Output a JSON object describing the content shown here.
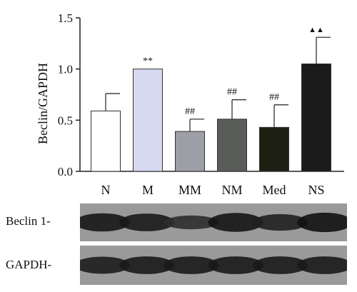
{
  "chart_data": {
    "type": "bar",
    "ylabel": "Beclin/GAPDH",
    "ylim": [
      0,
      1.5
    ],
    "yticks": [
      0.0,
      0.5,
      1.0,
      1.5
    ],
    "ytick_labels": [
      "0.0",
      "0.5",
      "1.0",
      "1.5"
    ],
    "grid": false,
    "categories": [
      "N",
      "M",
      "MM",
      "NM",
      "Med",
      "NS"
    ],
    "values": [
      0.59,
      1.0,
      0.39,
      0.51,
      0.43,
      1.05
    ],
    "error_upper": [
      0.17,
      0.0,
      0.12,
      0.19,
      0.22,
      0.26
    ],
    "significance": [
      "",
      "**",
      "##",
      "##",
      "##",
      "▲▲"
    ],
    "bar_colors": [
      "#ffffff",
      "#d6d9f0",
      "#9d9ea6",
      "#595c58",
      "#1c1f12",
      "#1b1b1b"
    ]
  },
  "blots": [
    {
      "label": "Beclin 1-",
      "band_intensity": [
        0.85,
        0.8,
        0.45,
        0.9,
        0.7,
        0.95
      ]
    },
    {
      "label": "GAPDH-",
      "band_intensity": [
        0.75,
        0.8,
        0.8,
        0.8,
        0.8,
        0.8
      ]
    }
  ]
}
